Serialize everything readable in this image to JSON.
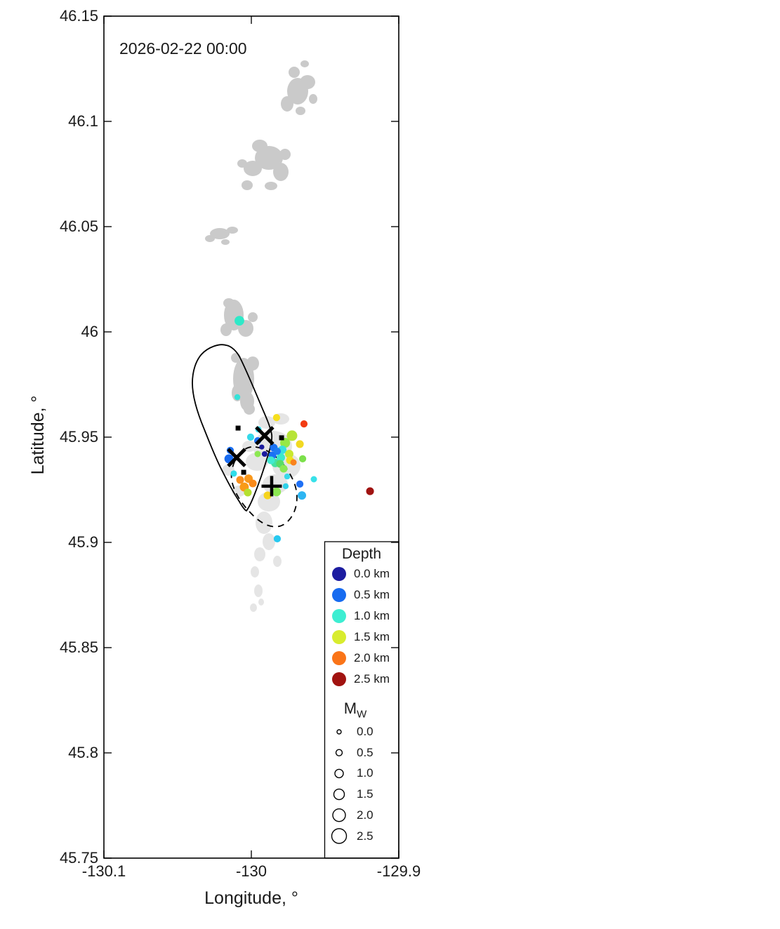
{
  "figure": {
    "date_label": "2026-02-22 00:00"
  },
  "axes": {
    "xlabel": "Longitude, °",
    "ylabel": "Latitude, °",
    "xlim": [
      -130.1,
      -129.9
    ],
    "ylim": [
      45.75,
      46.15
    ],
    "xticks": [
      -130.1,
      -130,
      -129.9
    ],
    "xtick_labels": [
      "-130.1",
      "-130",
      "-129.9"
    ],
    "yticks": [
      46.15,
      46.1,
      46.05,
      46,
      45.95,
      45.9,
      45.85,
      45.8,
      45.75
    ],
    "ytick_labels": [
      "46.15",
      "46.1",
      "46.05",
      "46",
      "45.95",
      "45.9",
      "45.85",
      "45.8",
      "45.75"
    ]
  },
  "legend": {
    "depth": {
      "title": "Depth",
      "entries": [
        {
          "label": "0.0 km",
          "color": "#1c1ca0"
        },
        {
          "label": "0.5 km",
          "color": "#176bf0"
        },
        {
          "label": "1.0 km",
          "color": "#3deed2"
        },
        {
          "label": "1.5 km",
          "color": "#d8ec2e"
        },
        {
          "label": "2.0 km",
          "color": "#fa7418"
        },
        {
          "label": "2.5 km",
          "color": "#a11310"
        }
      ]
    },
    "magnitude": {
      "title_main": "M",
      "title_sub": "W",
      "entries": [
        {
          "label": "0.0",
          "mw": 0.0
        },
        {
          "label": "0.5",
          "mw": 0.5
        },
        {
          "label": "1.0",
          "mw": 1.0
        },
        {
          "label": "1.5",
          "mw": 1.5
        },
        {
          "label": "2.0",
          "mw": 2.0
        },
        {
          "label": "2.5",
          "mw": 2.5
        }
      ]
    }
  },
  "chart_data": {
    "type": "scatter",
    "title": "2026-02-22 00:00",
    "xlabel": "Longitude, °",
    "ylabel": "Latitude, °",
    "xlim": [
      -130.1,
      -129.9
    ],
    "ylim": [
      45.75,
      46.15
    ],
    "grid": false,
    "size_encoding": "moment magnitude Mw (legend 0.0 - 2.5)",
    "color_encoding": "hypocenter depth km (jet colormap, legend 0.0 - 2.5 km)",
    "events": [
      {
        "lon": -130.0081,
        "lat": 46.0053,
        "depth_km": 1.0,
        "mw": 1.3,
        "color": "#2ee9c8"
      },
      {
        "lon": -130.0095,
        "lat": 45.969,
        "depth_km": 1.0,
        "mw": 0.4,
        "color": "#35e2d8"
      },
      {
        "lon": -129.9829,
        "lat": 45.9593,
        "depth_km": 1.6,
        "mw": 0.7,
        "color": "#f6df1e"
      },
      {
        "lon": -129.9643,
        "lat": 45.9563,
        "depth_km": 2.2,
        "mw": 0.7,
        "color": "#f23b12"
      },
      {
        "lon": -130.0005,
        "lat": 45.95,
        "depth_km": 1.0,
        "mw": 0.7,
        "color": "#35d9e9"
      },
      {
        "lon": -129.9952,
        "lat": 45.9537,
        "depth_km": 1.0,
        "mw": 0.5,
        "color": "#38d9e9"
      },
      {
        "lon": -129.9957,
        "lat": 45.9483,
        "depth_km": 0.5,
        "mw": 0.7,
        "color": "#1b70f2"
      },
      {
        "lon": -129.9957,
        "lat": 45.942,
        "depth_km": 1.3,
        "mw": 0.5,
        "color": "#8ce852"
      },
      {
        "lon": -129.9724,
        "lat": 45.9507,
        "depth_km": 1.45,
        "mw": 1.5,
        "color": "#b7e438"
      },
      {
        "lon": -129.9671,
        "lat": 45.9467,
        "depth_km": 1.6,
        "mw": 0.85,
        "color": "#f2d922"
      },
      {
        "lon": -130.0143,
        "lat": 45.9437,
        "depth_km": 0.5,
        "mw": 0.7,
        "color": "#1b70f2"
      },
      {
        "lon": -130.0152,
        "lat": 45.9397,
        "depth_km": 0.5,
        "mw": 1.15,
        "color": "#176af0"
      },
      {
        "lon": -130.0119,
        "lat": 45.9327,
        "depth_km": 1.0,
        "mw": 0.5,
        "color": "#30dde9"
      },
      {
        "lon": -129.9929,
        "lat": 45.9453,
        "depth_km": 0.05,
        "mw": 0.2,
        "color": "#1b1b9e"
      },
      {
        "lon": -129.991,
        "lat": 45.942,
        "depth_km": 0.05,
        "mw": 0.35,
        "color": "#1b1b9e"
      },
      {
        "lon": -129.9848,
        "lat": 45.945,
        "depth_km": 0.5,
        "mw": 0.85,
        "color": "#1a71f5"
      },
      {
        "lon": -129.9824,
        "lat": 45.9433,
        "depth_km": 0.55,
        "mw": 0.7,
        "color": "#1f7cf2"
      },
      {
        "lon": -129.9857,
        "lat": 45.9413,
        "depth_km": 0.5,
        "mw": 0.85,
        "color": "#1a71f5"
      },
      {
        "lon": -129.979,
        "lat": 45.944,
        "depth_km": 1.0,
        "mw": 1.0,
        "color": "#38e0e0"
      },
      {
        "lon": -129.98,
        "lat": 45.9403,
        "depth_km": 1.05,
        "mw": 1.0,
        "color": "#3ce9c9"
      },
      {
        "lon": -129.9867,
        "lat": 45.939,
        "depth_km": 1.0,
        "mw": 0.85,
        "color": "#41e9d1"
      },
      {
        "lon": -129.9838,
        "lat": 45.9377,
        "depth_km": 1.15,
        "mw": 1.0,
        "color": "#45e1a2"
      },
      {
        "lon": -129.9805,
        "lat": 45.9373,
        "depth_km": 1.25,
        "mw": 0.85,
        "color": "#59dc66"
      },
      {
        "lon": -129.9781,
        "lat": 45.935,
        "depth_km": 1.3,
        "mw": 0.85,
        "color": "#8ce852"
      },
      {
        "lon": -129.9771,
        "lat": 45.9473,
        "depth_km": 1.3,
        "mw": 1.35,
        "color": "#96e846"
      },
      {
        "lon": -129.9743,
        "lat": 45.942,
        "depth_km": 1.5,
        "mw": 1.0,
        "color": "#c9e930"
      },
      {
        "lon": -129.9738,
        "lat": 45.939,
        "depth_km": 1.6,
        "mw": 0.85,
        "color": "#f0e020"
      },
      {
        "lon": -129.9714,
        "lat": 45.938,
        "depth_km": 2.0,
        "mw": 0.5,
        "color": "#f9821b"
      },
      {
        "lon": -129.9652,
        "lat": 45.9397,
        "depth_km": 1.3,
        "mw": 0.7,
        "color": "#7ce04b"
      },
      {
        "lon": -129.9757,
        "lat": 45.9313,
        "depth_km": 1.0,
        "mw": 0.4,
        "color": "#38d9e9"
      },
      {
        "lon": -129.9576,
        "lat": 45.93,
        "depth_km": 1.0,
        "mw": 0.5,
        "color": "#38e1e9"
      },
      {
        "lon": -129.9671,
        "lat": 45.9277,
        "depth_km": 0.5,
        "mw": 0.7,
        "color": "#1f70f5"
      },
      {
        "lon": -129.9657,
        "lat": 45.9223,
        "depth_km": 0.75,
        "mw": 1.0,
        "color": "#2db5f2"
      },
      {
        "lon": -129.9195,
        "lat": 45.9243,
        "depth_km": 2.5,
        "mw": 0.85,
        "color": "#a01311"
      },
      {
        "lon": -130.0076,
        "lat": 45.9297,
        "depth_km": 1.9,
        "mw": 0.85,
        "color": "#f9901e"
      },
      {
        "lon": -130.0019,
        "lat": 45.9303,
        "depth_km": 1.9,
        "mw": 1.0,
        "color": "#f9981c"
      },
      {
        "lon": -130.0048,
        "lat": 45.9263,
        "depth_km": 1.9,
        "mw": 1.15,
        "color": "#f99a17"
      },
      {
        "lon": -129.999,
        "lat": 45.928,
        "depth_km": 2.0,
        "mw": 0.85,
        "color": "#f98a1a"
      },
      {
        "lon": -130.0024,
        "lat": 45.9237,
        "depth_km": 1.5,
        "mw": 0.85,
        "color": "#b4e030"
      },
      {
        "lon": -129.989,
        "lat": 45.9223,
        "depth_km": 1.7,
        "mw": 0.85,
        "color": "#f6d41e"
      },
      {
        "lon": -129.9829,
        "lat": 45.924,
        "depth_km": 1.3,
        "mw": 1.1,
        "color": "#8ce852"
      },
      {
        "lon": -129.9767,
        "lat": 45.9267,
        "depth_km": 1.0,
        "mw": 0.4,
        "color": "#30d1e9"
      },
      {
        "lon": -129.9824,
        "lat": 45.9017,
        "depth_km": 0.9,
        "mw": 0.7,
        "color": "#28c9f0"
      }
    ],
    "stations": [
      {
        "lon": -130.009,
        "lat": 45.9543
      },
      {
        "lon": -129.9795,
        "lat": 45.9497
      },
      {
        "lon": -130.0052,
        "lat": 45.9333
      }
    ],
    "x_markers": [
      {
        "lon": -129.991,
        "lat": 45.9507
      },
      {
        "lon": -130.01,
        "lat": 45.9403
      }
    ],
    "plus_marker": {
      "lon": -129.9862,
      "lat": 45.9267
    }
  }
}
